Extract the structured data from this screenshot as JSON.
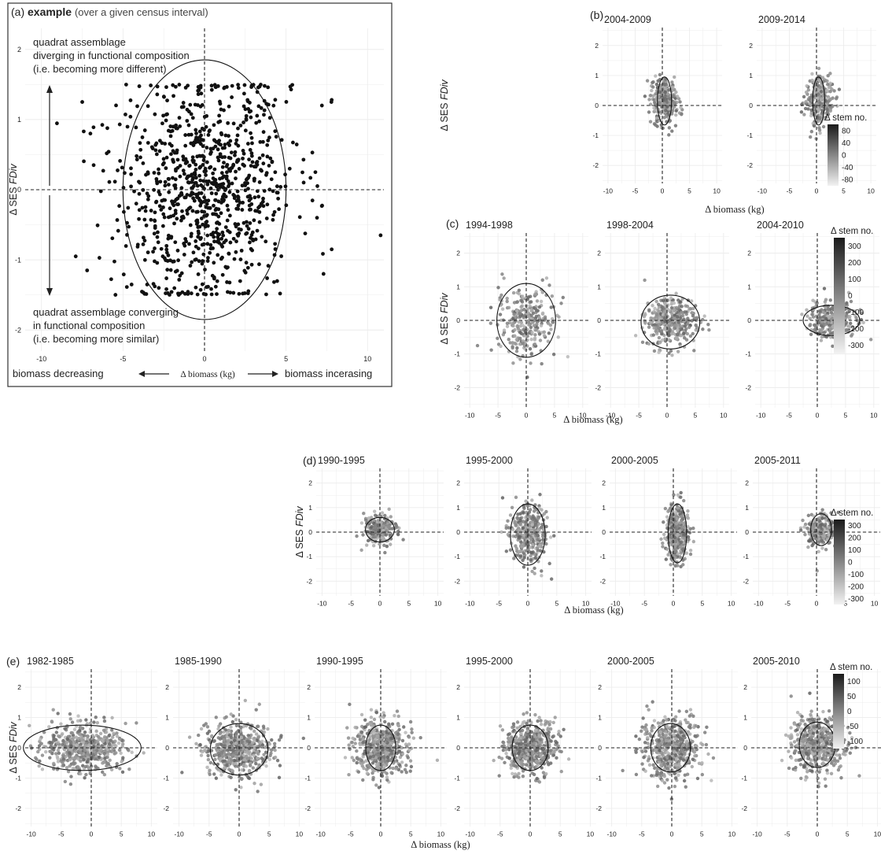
{
  "colors": {
    "point_dark": "#111111",
    "point_grey": "#8a8a8a",
    "grid": "#ececec",
    "axis": "#333333"
  },
  "chart_data": [
    {
      "id": "a",
      "type": "scatter",
      "panel_label": "(a)",
      "title_bold": "example",
      "title_note": "(over a given census interval)",
      "xlabel": "Δ biomass (kg)",
      "ylabel": "Δ SES FDiv",
      "xlim": [
        -11,
        11
      ],
      "ylim": [
        -2.3,
        2.3
      ],
      "xticks": [
        "-10",
        "-5",
        "0",
        "5",
        "10"
      ],
      "yticks": [
        "-2",
        "-1",
        "0",
        "1",
        "2"
      ],
      "annotations": {
        "top_line1": "quadrat assemblage",
        "top_line2": "diverging in functional composition",
        "top_line3": "(i.e. becoming more different)",
        "bottom_line1": "quadrat assemblage converging",
        "bottom_line2": "in functional composition",
        "bottom_line3": "(i.e. becoming more similar)",
        "left_label": "biomass decreasing",
        "right_label": "biomass incerasing"
      },
      "ellipse": {
        "cx": 0,
        "cy": 0,
        "rx": 5,
        "ry": 1.85
      },
      "cloud": {
        "sx": 2.6,
        "sy": 0.82,
        "n": 900,
        "yclip": 1.5
      },
      "outliers": [
        [
          -7.5,
          1.25
        ],
        [
          -7,
          0.8
        ],
        [
          -7.9,
          -0.95
        ],
        [
          -7.2,
          -1.15
        ],
        [
          7.2,
          1.2
        ],
        [
          7.8,
          1.28
        ],
        [
          6.8,
          0.25
        ],
        [
          7.3,
          -1.2
        ],
        [
          7.8,
          -0.85
        ],
        [
          10.8,
          -0.65
        ],
        [
          6.9,
          -0.4
        ],
        [
          -6.8,
          0.35
        ]
      ]
    },
    {
      "id": "b",
      "type": "scatter",
      "panel_label": "(b)",
      "xlabel": "Δ biomass (kg)",
      "ylabel": "Δ SES FDiv",
      "xlim": [
        -11,
        11
      ],
      "ylim": [
        -2.6,
        2.6
      ],
      "xticks": [
        "-10",
        "-5",
        "0",
        "5",
        "10"
      ],
      "yticks": [
        "-2",
        "-1",
        "0",
        "1",
        "2"
      ],
      "legend": {
        "title": "Δ stem no.",
        "ticks": [
          "80",
          "40",
          "0",
          "-40",
          "-80"
        ]
      },
      "subplots": [
        {
          "title": "2004-2009",
          "ellipse": {
            "cx": 0.4,
            "cy": 0.15,
            "rx": 1.3,
            "ry": 0.8
          },
          "cloud": {
            "sx": 1.2,
            "sy": 0.4,
            "n": 260
          }
        },
        {
          "title": "2009-2014",
          "ellipse": {
            "cx": 0.4,
            "cy": 0.15,
            "rx": 1.1,
            "ry": 0.8
          },
          "cloud": {
            "sx": 1.3,
            "sy": 0.4,
            "n": 260
          }
        }
      ]
    },
    {
      "id": "c",
      "type": "scatter",
      "panel_label": "(c)",
      "xlabel": "Δ biomass (kg)",
      "ylabel": "Δ SES FDiv",
      "xlim": [
        -11,
        11
      ],
      "ylim": [
        -2.6,
        2.6
      ],
      "xticks": [
        "-10",
        "-5",
        "0",
        "5",
        "10"
      ],
      "yticks": [
        "-2",
        "-1",
        "0",
        "1",
        "2"
      ],
      "legend": {
        "title": "Δ stem no.",
        "ticks": [
          "300",
          "200",
          "100",
          "0",
          "-100",
          "-200",
          "-300"
        ]
      },
      "subplots": [
        {
          "title": "1994-1998",
          "ellipse": {
            "cx": 0,
            "cy": 0,
            "rx": 5.2,
            "ry": 1.1
          },
          "cloud": {
            "sx": 2.6,
            "sy": 0.5,
            "n": 280
          }
        },
        {
          "title": "1998-2004",
          "ellipse": {
            "cx": 0.6,
            "cy": -0.05,
            "rx": 5.2,
            "ry": 0.8
          },
          "cloud": {
            "sx": 2.3,
            "sy": 0.35,
            "n": 340
          }
        },
        {
          "title": "2004-2010",
          "ellipse": {
            "cx": 2.5,
            "cy": 0,
            "rx": 5,
            "ry": 0.45
          },
          "cloud": {
            "sx": 2.2,
            "sy": 0.25,
            "n": 260
          }
        }
      ]
    },
    {
      "id": "d",
      "type": "scatter",
      "panel_label": "(d)",
      "xlabel": "Δ biomass (kg)",
      "ylabel": "Δ SES FDiv",
      "xlim": [
        -11,
        11
      ],
      "ylim": [
        -2.6,
        2.6
      ],
      "xticks": [
        "-10",
        "-5",
        "0",
        "5",
        "10"
      ],
      "yticks": [
        "-2",
        "-1",
        "0",
        "1",
        "2"
      ],
      "legend": {
        "title": "Δ stem no.",
        "ticks": [
          "300",
          "200",
          "100",
          "0",
          "-100",
          "-200",
          "-300"
        ]
      },
      "subplots": [
        {
          "title": "1990-1995",
          "ellipse": {
            "cx": 0,
            "cy": 0.1,
            "rx": 2.5,
            "ry": 0.5
          },
          "cloud": {
            "sx": 1.4,
            "sy": 0.3,
            "n": 220
          }
        },
        {
          "title": "1995-2000",
          "ellipse": {
            "cx": 0,
            "cy": -0.1,
            "rx": 3,
            "ry": 1.25
          },
          "cloud": {
            "sx": 1.6,
            "sy": 0.6,
            "n": 320
          }
        },
        {
          "title": "2000-2005",
          "ellipse": {
            "cx": 0.7,
            "cy": -0.05,
            "rx": 1.6,
            "ry": 1.2
          },
          "cloud": {
            "sx": 1.0,
            "sy": 0.6,
            "n": 300
          }
        },
        {
          "title": "2005-2011",
          "ellipse": {
            "cx": 0.8,
            "cy": 0.1,
            "rx": 1.8,
            "ry": 0.65
          },
          "cloud": {
            "sx": 1.2,
            "sy": 0.35,
            "n": 240
          }
        }
      ]
    },
    {
      "id": "e",
      "type": "scatter",
      "panel_label": "(e)",
      "xlabel": "Δ biomass (kg)",
      "ylabel": "Δ SES FDiv",
      "xlim": [
        -11,
        11
      ],
      "ylim": [
        -2.6,
        2.6
      ],
      "xticks": [
        "-10",
        "-5",
        "0",
        "5",
        "10"
      ],
      "yticks": [
        "-2",
        "-1",
        "0",
        "1",
        "2"
      ],
      "legend": {
        "title": "Δ stem no.",
        "ticks": [
          "100",
          "50",
          "0",
          "-50",
          "-100"
        ]
      },
      "subplots": [
        {
          "title": "1982-1985",
          "ellipse": {
            "cx": -1.5,
            "cy": 0,
            "rx": 9.8,
            "ry": 0.75
          },
          "cloud": {
            "sx": 3.6,
            "sy": 0.4,
            "n": 520
          }
        },
        {
          "title": "1985-1990",
          "ellipse": {
            "cx": 0,
            "cy": -0.05,
            "rx": 4.8,
            "ry": 0.85
          },
          "cloud": {
            "sx": 2.8,
            "sy": 0.45,
            "n": 520
          }
        },
        {
          "title": "1990-1995",
          "ellipse": {
            "cx": 0,
            "cy": 0,
            "rx": 2.5,
            "ry": 0.75
          },
          "cloud": {
            "sx": 2.2,
            "sy": 0.45,
            "n": 500
          }
        },
        {
          "title": "1995-2000",
          "ellipse": {
            "cx": 0,
            "cy": 0,
            "rx": 3,
            "ry": 0.75
          },
          "cloud": {
            "sx": 2.2,
            "sy": 0.45,
            "n": 500
          }
        },
        {
          "title": "2000-2005",
          "ellipse": {
            "cx": -0.2,
            "cy": 0,
            "rx": 3.3,
            "ry": 0.8
          },
          "cloud": {
            "sx": 2.4,
            "sy": 0.5,
            "n": 520
          }
        },
        {
          "title": "2005-2010",
          "ellipse": {
            "cx": 0,
            "cy": 0.1,
            "rx": 3,
            "ry": 0.75
          },
          "cloud": {
            "sx": 2.2,
            "sy": 0.45,
            "n": 500
          }
        }
      ]
    }
  ]
}
